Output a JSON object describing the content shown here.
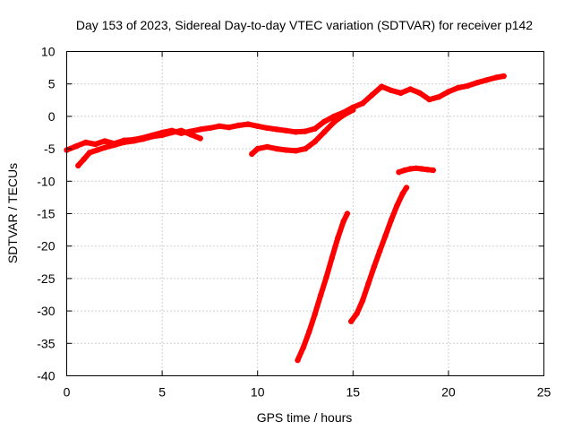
{
  "chart_data": {
    "type": "scatter",
    "title": "Day 153 of 2023, Sidereal Day-to-day VTEC variation (SDTVAR) for receiver p142",
    "xlabel": "GPS time / hours",
    "ylabel": "SDTVAR / TECUs",
    "xlim": [
      0,
      25
    ],
    "ylim": [
      -40,
      10
    ],
    "xticks": [
      0,
      5,
      10,
      15,
      20,
      25
    ],
    "yticks": [
      -40,
      -35,
      -30,
      -25,
      -20,
      -15,
      -10,
      -5,
      0,
      5,
      10
    ],
    "grid": true,
    "legend": "none",
    "color": "#ff0000",
    "series": [
      {
        "x": [
          0.0,
          0.5,
          1.0,
          1.5,
          2.0,
          2.5,
          3.0,
          3.5,
          4.0,
          4.5,
          5.0,
          5.5,
          6.0,
          6.5,
          7.0,
          7.5,
          8.0,
          8.5,
          9.0,
          9.5,
          10.0,
          10.5,
          11.0,
          11.5,
          12.0,
          12.5,
          13.0,
          13.5,
          14.0,
          14.5,
          15.0,
          15.5,
          16.0,
          16.5,
          17.0,
          17.5,
          18.0,
          18.5,
          19.0,
          19.5,
          20.0,
          20.5,
          21.0,
          21.5,
          22.0,
          22.5,
          22.9
        ],
        "values": [
          -5.2,
          -4.6,
          -4.0,
          -4.3,
          -3.8,
          -4.2,
          -3.7,
          -3.6,
          -3.3,
          -2.9,
          -2.5,
          -2.2,
          -2.6,
          -2.3,
          -2.0,
          -1.8,
          -1.5,
          -1.7,
          -1.4,
          -1.2,
          -1.5,
          -1.8,
          -2.0,
          -2.2,
          -2.4,
          -2.3,
          -1.9,
          -0.8,
          0.0,
          0.6,
          1.4,
          2.0,
          3.3,
          4.6,
          4.0,
          3.6,
          4.2,
          3.6,
          2.6,
          3.0,
          3.8,
          4.4,
          4.7,
          5.2,
          5.6,
          6.0,
          6.2
        ]
      },
      {
        "x": [
          0.6,
          0.9,
          1.2,
          1.6,
          2.0,
          2.5,
          3.0,
          3.5,
          4.0,
          4.5,
          5.0,
          5.5,
          6.0,
          6.5,
          7.0
        ],
        "values": [
          -7.6,
          -6.6,
          -5.6,
          -5.2,
          -4.8,
          -4.4,
          -4.0,
          -3.8,
          -3.5,
          -3.1,
          -2.9,
          -2.5,
          -2.2,
          -2.8,
          -3.4
        ]
      },
      {
        "x": [
          9.7,
          10.0,
          10.5,
          11.0,
          11.5,
          12.0,
          12.5,
          13.0,
          13.5,
          14.0,
          14.5,
          15.0
        ],
        "values": [
          -5.8,
          -5.0,
          -4.7,
          -5.0,
          -5.2,
          -5.3,
          -5.0,
          -3.9,
          -2.4,
          -0.9,
          0.2,
          1.0
        ]
      },
      {
        "x": [
          17.4,
          17.7,
          18.0,
          18.3,
          18.6,
          18.9,
          19.2
        ],
        "values": [
          -8.6,
          -8.3,
          -8.1,
          -8.0,
          -8.1,
          -8.2,
          -8.3
        ]
      },
      {
        "x": [
          12.1,
          12.4,
          12.7,
          13.0,
          13.3,
          13.6,
          13.9,
          14.2,
          14.5,
          14.7
        ],
        "values": [
          -37.6,
          -35.6,
          -33.2,
          -30.5,
          -27.6,
          -24.8,
          -21.8,
          -18.8,
          -16.2,
          -15.0
        ]
      },
      {
        "x": [
          14.9,
          15.2,
          15.5,
          15.8,
          16.1,
          16.4,
          16.7,
          17.0,
          17.3,
          17.6,
          17.8
        ],
        "values": [
          -31.6,
          -30.4,
          -28.4,
          -25.8,
          -23.2,
          -20.8,
          -18.4,
          -16.0,
          -13.8,
          -11.9,
          -11.0
        ]
      }
    ]
  }
}
